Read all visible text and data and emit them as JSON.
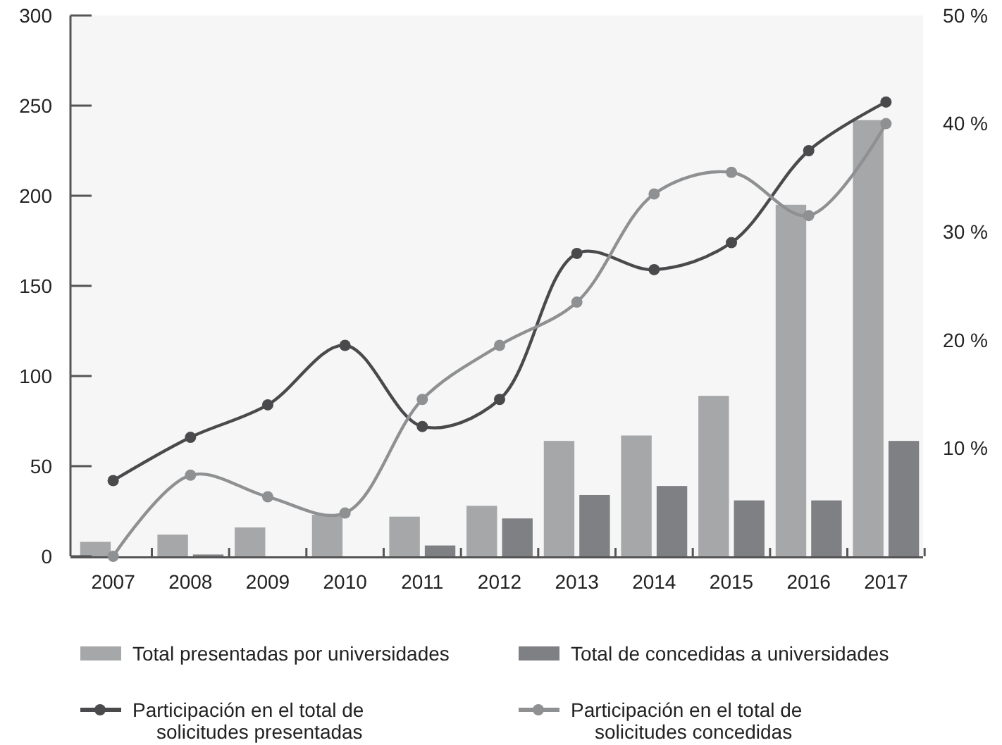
{
  "chart_data": {
    "type": "bar",
    "categories": [
      "2007",
      "2008",
      "2009",
      "2010",
      "2011",
      "2012",
      "2013",
      "2014",
      "2015",
      "2016",
      "2017"
    ],
    "series": [
      {
        "name": "Total presentadas por universidades",
        "color": "#a6a7a9",
        "values": [
          8,
          12,
          16,
          23,
          22,
          28,
          64,
          67,
          89,
          195,
          242
        ]
      },
      {
        "name": "Total de concedidas a universidades",
        "color": "#7f8083",
        "values": [
          0,
          1,
          0,
          0,
          6,
          21,
          34,
          39,
          31,
          31,
          64
        ]
      },
      {
        "name": "Participación en el total de solicitudes presentadas",
        "type": "line",
        "axis": "y2",
        "color": "#4a4a4c",
        "values": [
          7,
          11,
          14,
          19.5,
          12,
          14.5,
          28,
          26.5,
          29,
          37.5,
          42
        ]
      },
      {
        "name": "Participación en el total de solicitudes concedidas",
        "type": "line",
        "axis": "y2",
        "color": "#8f9092",
        "values": [
          0,
          7.5,
          5.5,
          4,
          14.5,
          19.5,
          23.5,
          33.5,
          35.5,
          31.5,
          40
        ]
      }
    ],
    "ylim": [
      0,
      300
    ],
    "yticks": [
      0,
      50,
      100,
      150,
      200,
      250,
      300
    ],
    "y2lim": [
      0,
      50
    ],
    "y2ticks": [
      {
        "value": 10,
        "label": "10 %"
      },
      {
        "value": 20,
        "label": "20 %"
      },
      {
        "value": 30,
        "label": "30 %"
      },
      {
        "value": 40,
        "label": "40 %"
      },
      {
        "value": 50,
        "label": "50 %"
      }
    ],
    "marker": "circle",
    "legend": "bottom",
    "grid": false
  }
}
